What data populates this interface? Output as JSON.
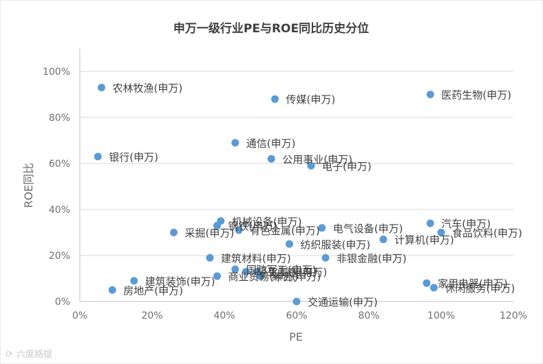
{
  "chart_data": {
    "type": "scatter",
    "title": "申万一级行业PE与ROE同比历史分位",
    "xlabel": "PE",
    "ylabel": "ROE同比",
    "xlim": [
      0,
      1.2
    ],
    "ylim": [
      0,
      1.0
    ],
    "x_ticks": [
      "0%",
      "20%",
      "40%",
      "60%",
      "80%",
      "100%",
      "120%"
    ],
    "y_ticks": [
      "0%",
      "20%",
      "40%",
      "60%",
      "80%",
      "100%"
    ],
    "grid": "horizontal",
    "point_color": "#5b9bd5",
    "points": [
      {
        "label": "农林牧渔(申万)",
        "x": 0.06,
        "y": 0.93
      },
      {
        "label": "传媒(申万)",
        "x": 0.54,
        "y": 0.88
      },
      {
        "label": "医药生物(申万)",
        "x": 0.97,
        "y": 0.9
      },
      {
        "label": "通信(申万)",
        "x": 0.43,
        "y": 0.69
      },
      {
        "label": "银行(申万)",
        "x": 0.05,
        "y": 0.63
      },
      {
        "label": "公用事业(申万)",
        "x": 0.53,
        "y": 0.62
      },
      {
        "label": "电子(申万)",
        "x": 0.64,
        "y": 0.59
      },
      {
        "label": "机械设备(申万)",
        "x": 0.39,
        "y": 0.35
      },
      {
        "label": "钢铁(申万)",
        "x": 0.38,
        "y": 0.33
      },
      {
        "label": "有色金属(申万)",
        "x": 0.44,
        "y": 0.31
      },
      {
        "label": "采掘(申万)",
        "x": 0.26,
        "y": 0.3
      },
      {
        "label": "电气设备(申万)",
        "x": 0.67,
        "y": 0.32
      },
      {
        "label": "汽车(申万)",
        "x": 0.97,
        "y": 0.34
      },
      {
        "label": "食品饮料(申万)",
        "x": 1.0,
        "y": 0.3
      },
      {
        "label": "计算机(申万)",
        "x": 0.84,
        "y": 0.27
      },
      {
        "label": "纺织服装(申万)",
        "x": 0.58,
        "y": 0.25
      },
      {
        "label": "建筑材料(申万)",
        "x": 0.36,
        "y": 0.19
      },
      {
        "label": "非银金融(申万)",
        "x": 0.68,
        "y": 0.19
      },
      {
        "label": "国防军工(申万)",
        "x": 0.43,
        "y": 0.14
      },
      {
        "label": "轻工制造(申万)",
        "x": 0.46,
        "y": 0.13
      },
      {
        "label": "化工(申万)",
        "x": 0.49,
        "y": 0.13
      },
      {
        "label": "商业贸易(申万)",
        "x": 0.38,
        "y": 0.11
      },
      {
        "label": "综合(申万)",
        "x": 0.5,
        "y": 0.11
      },
      {
        "label": "建筑装饰(申万)",
        "x": 0.15,
        "y": 0.09
      },
      {
        "label": "房地产(申万)",
        "x": 0.09,
        "y": 0.05
      },
      {
        "label": "家用电器(申万)",
        "x": 0.96,
        "y": 0.08
      },
      {
        "label": "休闲服务(申万)",
        "x": 0.98,
        "y": 0.06
      },
      {
        "label": "交通运输(申万)",
        "x": 0.6,
        "y": 0.0
      }
    ]
  },
  "watermark": "六度路提"
}
